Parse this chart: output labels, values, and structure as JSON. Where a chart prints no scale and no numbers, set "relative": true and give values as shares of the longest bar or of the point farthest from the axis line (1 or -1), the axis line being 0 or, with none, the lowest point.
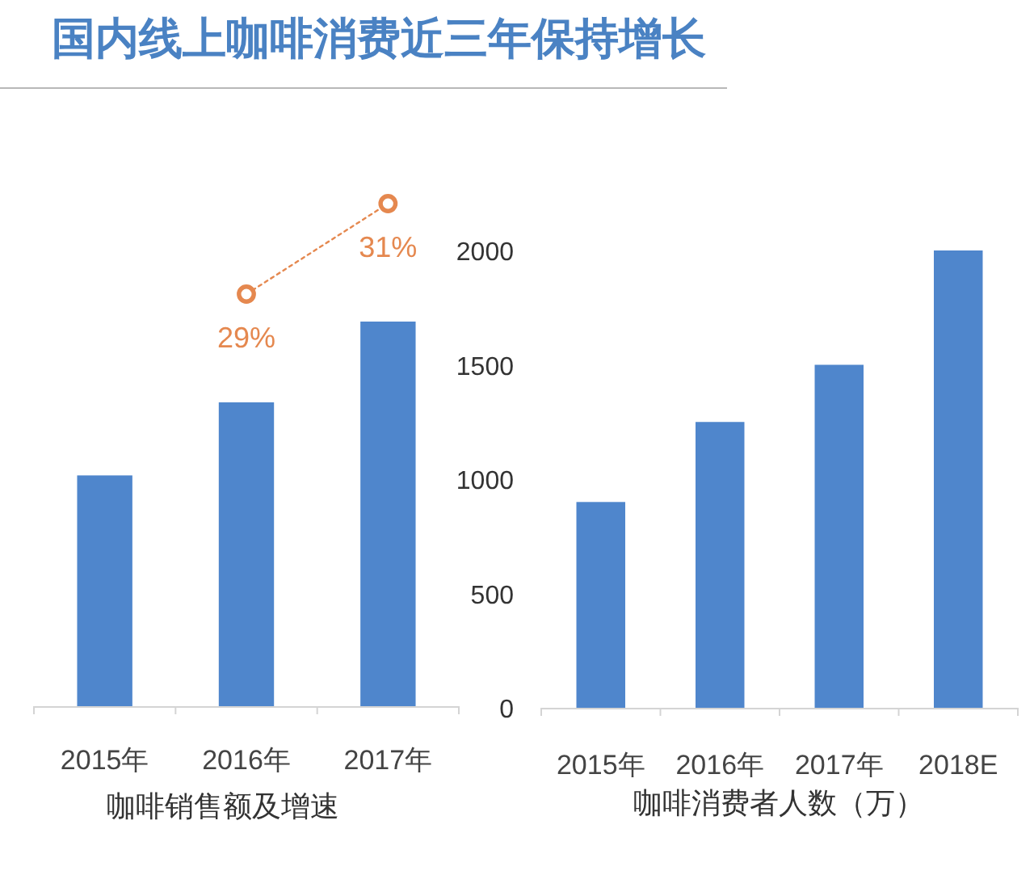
{
  "chart_data": [
    {
      "type": "line",
      "title": "国内线上咖啡消费近三年保持增长",
      "categories": [
        null,
        null,
        null
      ],
      "series": [
        {
          "color": "#e5884f",
          "values": [
            null,
            29,
            31
          ],
          "value_labels": [
            null,
            "29%",
            "31%"
          ],
          "marker": "circle",
          "line_style": "dotted"
        }
      ]
    },
    {
      "type": "bar",
      "xlabel": "咖啡销售额及增速",
      "categories": [
        "2015年",
        "2016年",
        "2017年"
      ],
      "relative": true,
      "series": [
        {
          "color": "#4f86cc",
          "values": [
            0.6,
            0.79,
            1
          ]
        }
      ]
    },
    {
      "type": "bar",
      "xlabel": "咖啡消费者人数（万）",
      "categories": [
        "2015年",
        "2016年",
        "2017年",
        "2018E"
      ],
      "ylim": [
        0,
        2000
      ],
      "yticks": [
        0,
        500,
        1000,
        1500,
        2000
      ],
      "series": [
        {
          "color": "#4f86cc",
          "values": [
            900,
            1250,
            1500,
            2000
          ]
        }
      ]
    }
  ]
}
